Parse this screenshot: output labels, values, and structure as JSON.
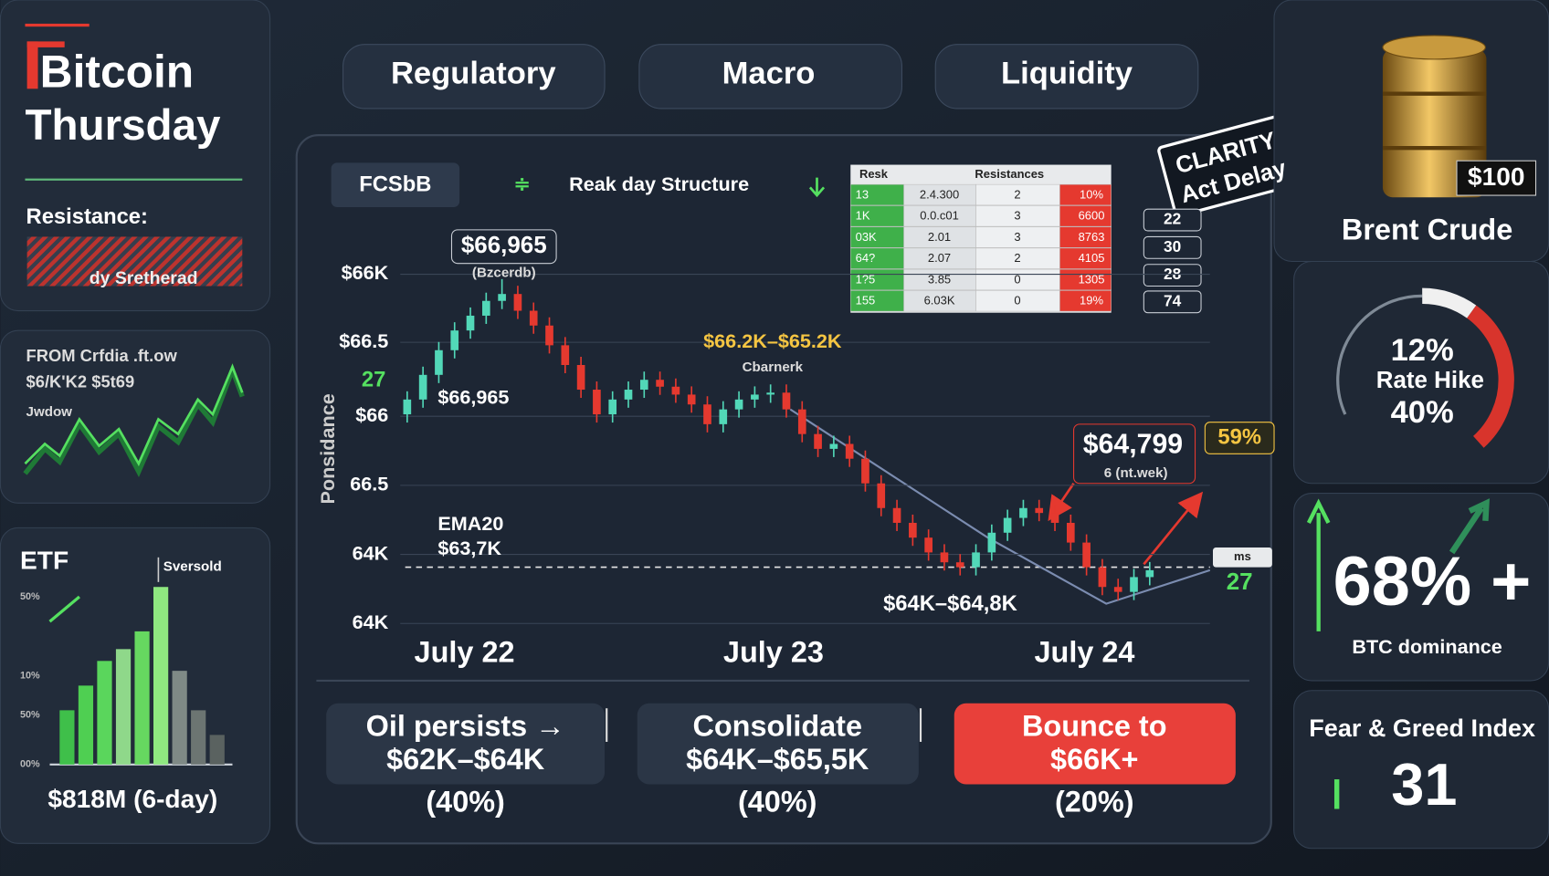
{
  "header": {
    "title_line1": "Bitcoin",
    "title_line2": "Thursday"
  },
  "resistance_panel": {
    "label": "Resistance:",
    "caption": "dy Sretherad"
  },
  "flow_panel": {
    "lines": [
      "FROM Crfdia .ft.ow",
      "$6/K'K2 $5t69",
      "Jwdow"
    ]
  },
  "tabs": [
    "Regulatory",
    "Macro",
    "Liquidity"
  ],
  "chart_panel": {
    "badge": "FCSbB",
    "structure": "Reak day Structure",
    "table": {
      "header": [
        "Resk",
        "Resistances"
      ],
      "rows": [
        [
          "13",
          "2.4.300",
          "2",
          "10%"
        ],
        [
          "1K",
          "0.0.c01",
          "3",
          "6600"
        ],
        [
          "03K",
          "2.01",
          "3",
          "8763"
        ],
        [
          "64?",
          "2.07",
          "2",
          "4105"
        ],
        [
          "1?5",
          "3.85",
          "0",
          "1305"
        ],
        [
          "155",
          "6.03K",
          "0",
          "19%"
        ]
      ]
    },
    "side_values": [
      "22",
      "30",
      "28",
      "74"
    ],
    "stamp": [
      "CLARITY",
      "Act Delay"
    ]
  },
  "scenarios": [
    {
      "lines": [
        "Oil persists →",
        "$62K–$64K"
      ],
      "probability": "(40%)"
    },
    {
      "lines": [
        "Consolidate",
        "$64K–$65,5K"
      ],
      "probability": "(40%)"
    },
    {
      "lines": [
        "Bounce to",
        "$66K+"
      ],
      "probability": "(20%)"
    }
  ],
  "brent": {
    "price": "$100",
    "label": "Brent Crude"
  },
  "gauge": {
    "top": "12%",
    "label": "Rate Hike",
    "bottom": "40%"
  },
  "dominance": {
    "value": "68% +",
    "label": "BTC dominance"
  },
  "fear_greed": {
    "label": "Fear & Greed Index",
    "value": "31"
  },
  "chart_data": [
    {
      "type": "candlestick",
      "y_label": "Ponsidance",
      "y_axis_labels": [
        "$66K",
        "$66.5",
        "$66",
        "66.5",
        "64K",
        "64K"
      ],
      "x_labels": [
        "July 22",
        "July 23",
        "July 24"
      ],
      "ylim": [
        63700,
        67300
      ],
      "up_color": "#52d8b8",
      "down_color": "#e5392f",
      "open": [
        65764,
        65908,
        66148,
        66388,
        66580,
        66724,
        66868,
        66935,
        66772,
        66628,
        66436,
        66244,
        66004,
        65764,
        65908,
        66004,
        66100,
        66033,
        65956,
        65860,
        65668,
        65812,
        65908,
        65956,
        65975,
        65812,
        65572,
        65428,
        65476,
        65332,
        65092,
        64852,
        64708,
        64564,
        64420,
        64324,
        64276,
        64420,
        64612,
        64756,
        64852,
        64804,
        64708,
        64516,
        64276,
        64084,
        64036,
        64180
      ],
      "high": [
        65988,
        66228,
        66468,
        66660,
        66804,
        66948,
        67080,
        67015,
        66852,
        66708,
        66516,
        66324,
        66084,
        65988,
        66084,
        66180,
        66180,
        66113,
        66036,
        65940,
        65892,
        65988,
        66036,
        66055,
        66055,
        65892,
        65652,
        65556,
        65556,
        65412,
        65172,
        64932,
        64788,
        64644,
        64500,
        64404,
        64500,
        64692,
        64836,
        64932,
        64932,
        64884,
        64788,
        64596,
        64356,
        64164,
        64260,
        64327
      ],
      "low": [
        65684,
        65828,
        66068,
        66308,
        66500,
        66644,
        66788,
        66692,
        66548,
        66356,
        66164,
        65924,
        65684,
        65684,
        65828,
        65924,
        65953,
        65876,
        65780,
        65588,
        65588,
        65732,
        65828,
        65876,
        65732,
        65492,
        65348,
        65348,
        65252,
        65012,
        64772,
        64628,
        64484,
        64340,
        64244,
        64196,
        64196,
        64340,
        64532,
        64676,
        64724,
        64628,
        64436,
        64196,
        64004,
        63956,
        63956,
        64100
      ],
      "close": [
        65908,
        66148,
        66388,
        66580,
        66724,
        66868,
        66935,
        66772,
        66628,
        66436,
        66244,
        66004,
        65764,
        65908,
        66004,
        66100,
        66033,
        65956,
        65860,
        65668,
        65812,
        65908,
        65956,
        65975,
        65812,
        65572,
        65428,
        65476,
        65332,
        65092,
        64852,
        64708,
        64564,
        64420,
        64324,
        64276,
        64420,
        64612,
        64756,
        64852,
        64804,
        64708,
        64516,
        64276,
        64084,
        64036,
        64180,
        64247
      ],
      "annotations": {
        "peak_price": "$66,965",
        "peak_note": "(Bzcerdb)",
        "left_price": "$66,965",
        "range_upper": "$66.2K–$65.2K",
        "range_note": "Cbarnerk",
        "callout_price": "$64,799",
        "callout_note": "6 (nt.wek)",
        "callout_pct": "59%",
        "ema_label": "EMA20",
        "ema_value": "$63,7K",
        "range_lower": "$64K–$64,8K",
        "tag": "ms",
        "right_value": "27",
        "left_value": "27"
      }
    },
    {
      "type": "bar",
      "title": "ETF",
      "note": "Sversold",
      "y_axis_labels": [
        "50%",
        "10%",
        "50%",
        "00%"
      ],
      "values": [
        55,
        80,
        105,
        117,
        135,
        180,
        95,
        55,
        30
      ],
      "colors": [
        "#3fbf4a",
        "#4fcf52",
        "#5ad65c",
        "#8fd88a",
        "#66d860",
        "#8fe880",
        "#7f8a86",
        "#6c7572",
        "#5a6260"
      ],
      "ylim": [
        0,
        200
      ],
      "caption": "$818M (6-day)"
    }
  ]
}
